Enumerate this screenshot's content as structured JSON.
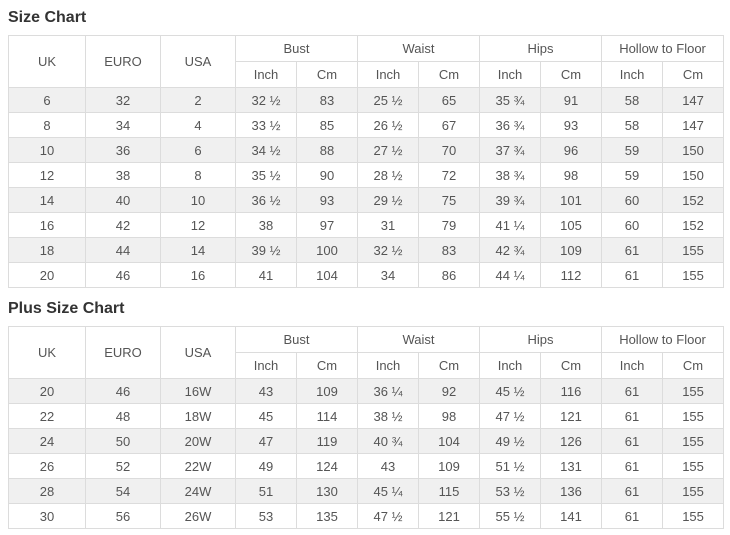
{
  "titles": {
    "main": "Size Chart",
    "plus": "Plus Size Chart"
  },
  "header": {
    "simple_columns": [
      "UK",
      "EURO",
      "USA"
    ],
    "measure_groups": [
      "Bust",
      "Waist",
      "Hips",
      "Hollow to Floor"
    ],
    "sub_columns": [
      "Inch",
      "Cm"
    ]
  },
  "colors": {
    "stripe_row_bg": "#f0f0f0",
    "border": "#dcdcdc",
    "cell_text": "#555555",
    "title_text": "#333333",
    "page_bg": "#ffffff"
  },
  "chart_data": [
    {
      "type": "table",
      "title": "Size Chart",
      "columns": [
        "UK",
        "EURO",
        "USA",
        "Bust Inch",
        "Bust Cm",
        "Waist Inch",
        "Waist Cm",
        "Hips Inch",
        "Hips Cm",
        "Hollow to Floor Inch",
        "Hollow to Floor Cm"
      ],
      "rows": [
        [
          "6",
          "32",
          "2",
          "32 ½",
          "83",
          "25 ½",
          "65",
          "35 ¾",
          "91",
          "58",
          "147"
        ],
        [
          "8",
          "34",
          "4",
          "33 ½",
          "85",
          "26 ½",
          "67",
          "36 ¾",
          "93",
          "58",
          "147"
        ],
        [
          "10",
          "36",
          "6",
          "34 ½",
          "88",
          "27 ½",
          "70",
          "37 ¾",
          "96",
          "59",
          "150"
        ],
        [
          "12",
          "38",
          "8",
          "35 ½",
          "90",
          "28 ½",
          "72",
          "38 ¾",
          "98",
          "59",
          "150"
        ],
        [
          "14",
          "40",
          "10",
          "36 ½",
          "93",
          "29 ½",
          "75",
          "39 ¾",
          "101",
          "60",
          "152"
        ],
        [
          "16",
          "42",
          "12",
          "38",
          "97",
          "31",
          "79",
          "41 ¼",
          "105",
          "60",
          "152"
        ],
        [
          "18",
          "44",
          "14",
          "39 ½",
          "100",
          "32 ½",
          "83",
          "42 ¾",
          "109",
          "61",
          "155"
        ],
        [
          "20",
          "46",
          "16",
          "41",
          "104",
          "34",
          "86",
          "44 ¼",
          "112",
          "61",
          "155"
        ]
      ]
    },
    {
      "type": "table",
      "title": "Plus Size Chart",
      "columns": [
        "UK",
        "EURO",
        "USA",
        "Bust Inch",
        "Bust Cm",
        "Waist Inch",
        "Waist Cm",
        "Hips Inch",
        "Hips Cm",
        "Hollow to Floor Inch",
        "Hollow to Floor Cm"
      ],
      "rows": [
        [
          "20",
          "46",
          "16W",
          "43",
          "109",
          "36 ¼",
          "92",
          "45 ½",
          "116",
          "61",
          "155"
        ],
        [
          "22",
          "48",
          "18W",
          "45",
          "114",
          "38 ½",
          "98",
          "47 ½",
          "121",
          "61",
          "155"
        ],
        [
          "24",
          "50",
          "20W",
          "47",
          "119",
          "40 ¾",
          "104",
          "49 ½",
          "126",
          "61",
          "155"
        ],
        [
          "26",
          "52",
          "22W",
          "49",
          "124",
          "43",
          "109",
          "51 ½",
          "131",
          "61",
          "155"
        ],
        [
          "28",
          "54",
          "24W",
          "51",
          "130",
          "45 ¼",
          "115",
          "53 ½",
          "136",
          "61",
          "155"
        ],
        [
          "30",
          "56",
          "26W",
          "53",
          "135",
          "47 ½",
          "121",
          "55 ½",
          "141",
          "61",
          "155"
        ]
      ]
    }
  ]
}
